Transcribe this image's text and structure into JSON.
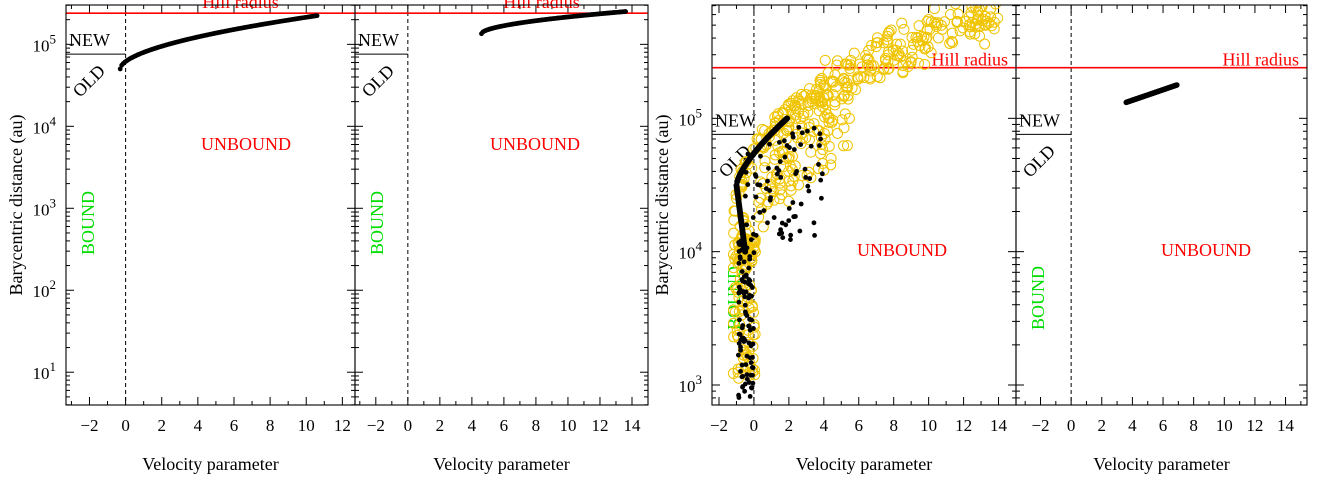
{
  "figure": {
    "colors": {
      "hill": "#ff0000",
      "bound": "#00dd00",
      "unbound": "#ff0000",
      "black_points": "#000000",
      "yellow_points": "#f0c400"
    }
  },
  "chart_data": [
    {
      "type": "scatter",
      "xlabel": "Velocity parameter",
      "ylabel": "Barycentric distance (au)",
      "xlim": [
        -3.3,
        12.7
      ],
      "ylim_log10": [
        0.6,
        5.48
      ],
      "x_ticks": [
        -2,
        0,
        2,
        4,
        6,
        8,
        10,
        12
      ],
      "y_ticks": [
        {
          "label": "10",
          "exp": "1",
          "log": 1
        },
        {
          "label": "10",
          "exp": "2",
          "log": 2
        },
        {
          "label": "10",
          "exp": "3",
          "log": 3
        },
        {
          "label": "10",
          "exp": "4",
          "log": 4
        },
        {
          "label": "10",
          "exp": "5",
          "log": 5
        }
      ],
      "hill_log10": 5.38,
      "hill_label": "Hill radius",
      "new_old_log10": 4.88,
      "new_label": "NEW",
      "old_label": "OLD",
      "bound_label": "BOUND",
      "unbound_label": "UNBOUND",
      "series": [
        {
          "style": "black",
          "kind": "curve",
          "x_from": -0.3,
          "x_to": 10.6,
          "log_from": 4.7,
          "log_to": 5.35,
          "n": 130
        }
      ]
    },
    {
      "type": "scatter",
      "xlabel": "Velocity parameter",
      "ylabel": "",
      "xlim": [
        -3.3,
        15.0
      ],
      "ylim_log10": [
        0.6,
        5.48
      ],
      "x_ticks": [
        -2,
        0,
        2,
        4,
        6,
        8,
        10,
        12,
        14
      ],
      "y_ticks": [],
      "hill_log10": 5.38,
      "hill_label": "Hill radius",
      "new_old_log10": 4.88,
      "new_label": "NEW",
      "old_label": "OLD",
      "bound_label": "BOUND",
      "unbound_label": "UNBOUND",
      "series": [
        {
          "style": "black",
          "kind": "curve",
          "x_from": 4.6,
          "x_to": 13.6,
          "log_from": 5.13,
          "log_to": 5.4,
          "n": 110
        }
      ]
    },
    {
      "type": "scatter",
      "xlabel": "Velocity parameter",
      "ylabel": "Barycentric distance (au)",
      "xlim": [
        -2.4,
        15.0
      ],
      "ylim_log10": [
        2.85,
        5.85
      ],
      "x_ticks": [
        -2,
        0,
        2,
        4,
        6,
        8,
        10,
        12,
        14
      ],
      "y_ticks": [
        {
          "label": "10",
          "exp": "3",
          "log": 3
        },
        {
          "label": "10",
          "exp": "4",
          "log": 4
        },
        {
          "label": "10",
          "exp": "5",
          "log": 5
        }
      ],
      "hill_log10": 5.38,
      "hill_label": "Hill radius",
      "new_old_log10": 4.88,
      "new_label": "NEW",
      "old_label": "OLD",
      "bound_label": "BOUND",
      "unbound_label": "UNBOUND",
      "series": [
        {
          "style": "yellow",
          "kind": "fan",
          "n": 520
        },
        {
          "style": "black",
          "kind": "scatter-low",
          "n": 170
        },
        {
          "style": "black",
          "kind": "thick-curve",
          "n": 90
        }
      ]
    },
    {
      "type": "scatter",
      "xlabel": "Velocity parameter",
      "ylabel": "",
      "xlim": [
        -3.6,
        15.4
      ],
      "ylim_log10": [
        2.85,
        5.85
      ],
      "x_ticks": [
        -2,
        0,
        2,
        4,
        6,
        8,
        10,
        12,
        14
      ],
      "y_ticks": [],
      "hill_log10": 5.38,
      "hill_label": "Hill radius",
      "new_old_log10": 4.88,
      "new_label": "NEW",
      "old_label": "OLD",
      "bound_label": "BOUND",
      "unbound_label": "UNBOUND",
      "series": [
        {
          "style": "black",
          "kind": "thick-line",
          "x_from": 3.6,
          "x_to": 6.9,
          "log_from": 5.12,
          "log_to": 5.25,
          "n": 60
        }
      ]
    }
  ]
}
